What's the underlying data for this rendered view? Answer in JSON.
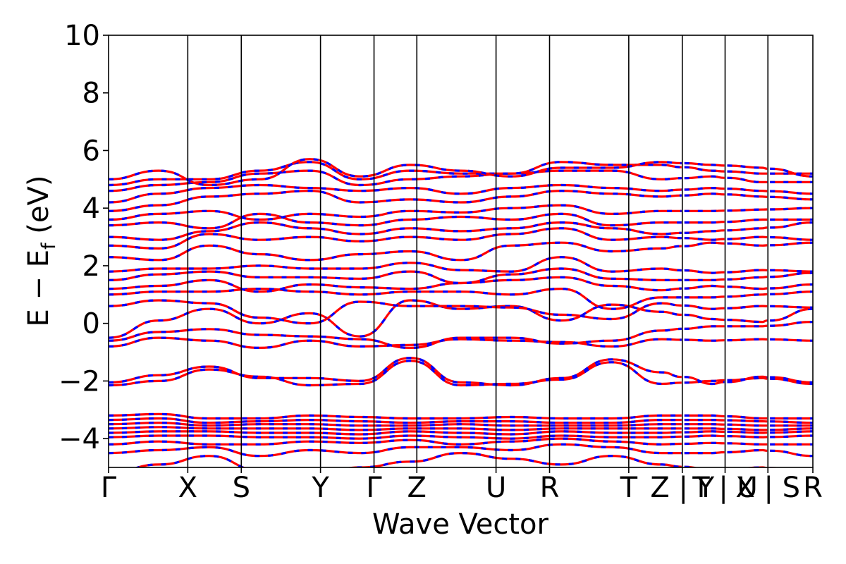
{
  "chart_data": {
    "type": "line",
    "xlabel": "Wave Vector",
    "ylabel_parts": {
      "main": "E − E",
      "sub": "f",
      "unit": " (eV)"
    },
    "ylim": [
      -5,
      10
    ],
    "yticks": [
      {
        "value": -4,
        "label": "−4"
      },
      {
        "value": -2,
        "label": "−2"
      },
      {
        "value": 0,
        "label": "0"
      },
      {
        "value": 2,
        "label": "2"
      },
      {
        "value": 4,
        "label": "4"
      },
      {
        "value": 6,
        "label": "6"
      },
      {
        "value": 8,
        "label": "8"
      },
      {
        "value": 10,
        "label": "10"
      }
    ],
    "kpoints": [
      {
        "label": "Γ",
        "k": 0.0
      },
      {
        "label": "X",
        "k": 0.37
      },
      {
        "label": "S",
        "k": 0.62
      },
      {
        "label": "Y",
        "k": 0.99
      },
      {
        "label": "Γ",
        "k": 1.24
      },
      {
        "label": "Z",
        "k": 1.44
      },
      {
        "label": "U",
        "k": 1.81
      },
      {
        "label": "R",
        "k": 2.06
      },
      {
        "label": "T",
        "k": 2.43
      },
      {
        "label": "Z | Y",
        "k": 2.68
      },
      {
        "label": "T | U",
        "k": 2.88
      },
      {
        "label": "X | S",
        "k": 3.08
      },
      {
        "label": "R",
        "k": 3.29
      }
    ],
    "xlim": [
      0.0,
      3.29
    ],
    "segment_breaks_k": [
      2.68,
      2.88,
      3.08
    ],
    "series": [
      {
        "color": "#ff0000",
        "style": "solid",
        "width": 3.2
      },
      {
        "color": "#0000ff",
        "style": "dashed",
        "width": 3.2
      }
    ],
    "bands": [
      [
        -2.15,
        -2.0,
        -1.6,
        -1.85,
        -2.15,
        -2.1,
        -1.3,
        -2.15,
        -2.1,
        -1.95,
        -1.35,
        -2.1,
        -2.0,
        -1.9,
        -2.1
      ],
      [
        -2.05,
        -1.8,
        -1.5,
        -1.9,
        -1.9,
        -2.0,
        -1.2,
        -2.05,
        -2.15,
        -1.9,
        -1.25,
        -1.7,
        -2.1,
        -1.85,
        -2.05
      ],
      [
        -0.8,
        -0.5,
        -0.6,
        -0.85,
        -0.6,
        -0.8,
        -0.75,
        -0.55,
        -0.6,
        -0.65,
        -0.8,
        -0.55,
        -0.6,
        -0.55,
        -0.6
      ],
      [
        -0.6,
        -0.3,
        -0.2,
        -0.4,
        -0.45,
        -0.55,
        -0.85,
        -0.5,
        -0.5,
        -0.7,
        -0.6,
        -0.25,
        -0.1,
        -0.1,
        0.05
      ],
      [
        -0.5,
        0.1,
        0.5,
        0.0,
        0.35,
        -0.45,
        0.8,
        0.5,
        0.6,
        0.1,
        0.65,
        0.4,
        0.15,
        0.05,
        0.5
      ],
      [
        0.6,
        0.8,
        0.7,
        0.2,
        0.0,
        0.75,
        0.6,
        0.6,
        0.55,
        0.3,
        0.15,
        0.7,
        0.5,
        0.6,
        0.55
      ],
      [
        1.0,
        1.1,
        1.1,
        1.2,
        1.1,
        1.0,
        1.1,
        1.1,
        1.0,
        1.2,
        0.5,
        0.9,
        0.9,
        1.0,
        1.1
      ],
      [
        1.2,
        1.3,
        1.5,
        1.1,
        1.35,
        1.25,
        1.2,
        1.4,
        1.5,
        1.6,
        1.3,
        1.15,
        1.3,
        1.2,
        1.35
      ],
      [
        1.5,
        1.7,
        1.8,
        1.6,
        1.6,
        1.55,
        1.8,
        1.4,
        1.7,
        1.9,
        1.55,
        1.5,
        1.5,
        1.6,
        1.75
      ],
      [
        1.8,
        1.9,
        1.9,
        2.0,
        1.9,
        1.9,
        2.1,
        1.85,
        1.8,
        2.3,
        1.8,
        1.9,
        1.75,
        1.85,
        1.8
      ],
      [
        2.3,
        2.2,
        2.7,
        2.4,
        2.2,
        2.4,
        2.5,
        2.2,
        2.7,
        2.8,
        2.5,
        2.6,
        2.8,
        2.7,
        2.8
      ],
      [
        2.7,
        2.6,
        3.1,
        2.9,
        3.0,
        2.85,
        3.0,
        2.9,
        3.1,
        3.3,
        2.9,
        3.0,
        2.9,
        3.0,
        2.9
      ],
      [
        3.0,
        2.9,
        3.2,
        3.5,
        3.3,
        3.1,
        3.3,
        3.2,
        3.3,
        3.5,
        3.3,
        3.1,
        3.2,
        3.3,
        3.5
      ],
      [
        3.4,
        3.5,
        3.3,
        3.8,
        3.5,
        3.4,
        3.6,
        3.7,
        3.6,
        3.8,
        3.4,
        3.5,
        3.5,
        3.6,
        3.6
      ],
      [
        3.6,
        3.8,
        3.9,
        3.6,
        3.8,
        3.7,
        3.9,
        3.85,
        4.0,
        4.1,
        3.8,
        3.9,
        3.9,
        3.95,
        4.0
      ],
      [
        3.9,
        4.1,
        4.4,
        4.5,
        4.6,
        4.2,
        4.3,
        4.2,
        4.4,
        4.6,
        4.5,
        4.4,
        4.5,
        4.4,
        4.3
      ],
      [
        4.2,
        4.5,
        4.7,
        4.8,
        4.7,
        4.6,
        4.7,
        4.5,
        4.7,
        4.8,
        4.7,
        4.6,
        4.7,
        4.6,
        4.5
      ],
      [
        4.6,
        4.8,
        4.9,
        5.2,
        5.3,
        4.8,
        5.0,
        5.1,
        5.2,
        5.3,
        5.3,
        5.0,
        5.1,
        4.9,
        4.9
      ],
      [
        4.8,
        5.0,
        5.0,
        5.3,
        5.6,
        5.0,
        5.3,
        5.2,
        5.2,
        5.6,
        5.5,
        5.5,
        5.3,
        5.2,
        5.2
      ],
      [
        5.0,
        5.3,
        4.8,
        5.0,
        5.7,
        5.1,
        5.5,
        5.3,
        5.1,
        5.4,
        5.4,
        5.6,
        5.5,
        5.4,
        5.1
      ],
      [
        -3.2,
        -3.15,
        -3.3,
        -3.3,
        -3.2,
        -3.25,
        -3.3,
        -3.3,
        -3.25,
        -3.3,
        -3.3,
        -3.2,
        -3.2,
        -3.3,
        -3.3
      ],
      [
        -3.35,
        -3.3,
        -3.45,
        -3.4,
        -3.35,
        -3.4,
        -3.45,
        -3.4,
        -3.4,
        -3.45,
        -3.45,
        -3.35,
        -3.35,
        -3.4,
        -3.45
      ],
      [
        -3.5,
        -3.45,
        -3.55,
        -3.5,
        -3.5,
        -3.55,
        -3.55,
        -3.5,
        -3.55,
        -3.55,
        -3.55,
        -3.5,
        -3.5,
        -3.55,
        -3.55
      ],
      [
        -3.65,
        -3.6,
        -3.65,
        -3.65,
        -3.65,
        -3.7,
        -3.65,
        -3.65,
        -3.7,
        -3.65,
        -3.65,
        -3.65,
        -3.65,
        -3.7,
        -3.65
      ],
      [
        -3.8,
        -3.75,
        -3.75,
        -3.8,
        -3.8,
        -3.85,
        -3.75,
        -3.8,
        -3.85,
        -3.75,
        -3.8,
        -3.8,
        -3.75,
        -3.8,
        -3.75
      ],
      [
        -3.95,
        -3.9,
        -3.9,
        -3.95,
        -3.95,
        -4.0,
        -3.9,
        -3.95,
        -4.0,
        -3.9,
        -3.95,
        -3.95,
        -3.9,
        -3.95,
        -3.9
      ],
      [
        -4.2,
        -4.1,
        -4.2,
        -4.2,
        -4.1,
        -4.15,
        -4.05,
        -4.2,
        -4.1,
        -4.0,
        -4.1,
        -4.2,
        -4.15,
        -4.2,
        -4.2
      ],
      [
        -4.5,
        -4.4,
        -4.3,
        -4.6,
        -4.4,
        -4.5,
        -4.3,
        -4.3,
        -4.4,
        -4.2,
        -4.3,
        -4.5,
        -4.5,
        -4.4,
        -4.6
      ],
      [
        -5.2,
        -4.9,
        -4.6,
        -5.1,
        -5.3,
        -5.0,
        -4.8,
        -4.5,
        -4.7,
        -4.9,
        -4.6,
        -4.9,
        -5.1,
        -5.0,
        -5.2
      ]
    ]
  }
}
